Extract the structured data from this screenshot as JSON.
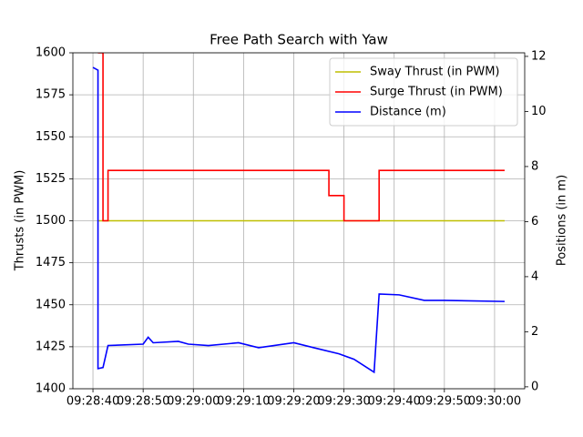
{
  "chart_data": {
    "type": "line",
    "title": "Free Path Search with Yaw",
    "ylabel": "Thrusts (in PWM)",
    "y2label": "Positions (in m)",
    "xlim": [
      "09:28:36",
      "09:30:06"
    ],
    "xticks": [
      "09:28:40",
      "09:28:50",
      "09:29:00",
      "09:29:10",
      "09:29:20",
      "09:29:30",
      "09:29:40",
      "09:29:50",
      "09:30:00"
    ],
    "ylim": [
      1400,
      1600
    ],
    "yticks": [
      1400,
      1425,
      1450,
      1475,
      1500,
      1525,
      1550,
      1575,
      1600
    ],
    "y2lim": [
      -0.07,
      12.13
    ],
    "y2ticks": [
      0,
      2,
      4,
      6,
      8,
      10,
      12
    ],
    "grid": true,
    "legend": "upper right",
    "series": [
      {
        "name": "Sway Thrust (in PWM)",
        "color": "#bfbf00",
        "x": [
          "09:28:41",
          "09:30:02"
        ],
        "values": [
          1500,
          1500
        ]
      },
      {
        "name": "Surge Thrust (in PWM)",
        "color": "#ff0000",
        "x": [
          "09:28:41",
          "09:28:42",
          "09:28:42",
          "09:28:43",
          "09:28:43",
          "09:29:27",
          "09:29:27",
          "09:29:30",
          "09:29:30",
          "09:29:37",
          "09:29:37",
          "09:30:02"
        ],
        "values": [
          1600,
          1600,
          1500,
          1500,
          1530,
          1530,
          1515,
          1515,
          1500,
          1500,
          1530,
          1530
        ]
      },
      {
        "name": "Distance (m)",
        "color": "#0000ff",
        "axis": "y2",
        "x": [
          "09:28:40",
          "09:28:41",
          "09:28:41",
          "09:28:42",
          "09:28:43",
          "09:28:50",
          "09:28:51",
          "09:28:52",
          "09:28:57",
          "09:28:59",
          "09:29:03",
          "09:29:09",
          "09:29:13",
          "09:29:20",
          "09:29:24",
          "09:29:29",
          "09:29:32",
          "09:29:36",
          "09:29:37",
          "09:29:41",
          "09:29:46",
          "09:29:50",
          "09:30:02"
        ],
        "values": [
          11.6,
          11.5,
          0.66,
          0.7,
          1.5,
          1.55,
          1.8,
          1.6,
          1.65,
          1.55,
          1.5,
          1.6,
          1.42,
          1.6,
          1.42,
          1.2,
          1.0,
          0.53,
          3.37,
          3.34,
          3.14,
          3.14,
          3.1
        ]
      }
    ]
  }
}
